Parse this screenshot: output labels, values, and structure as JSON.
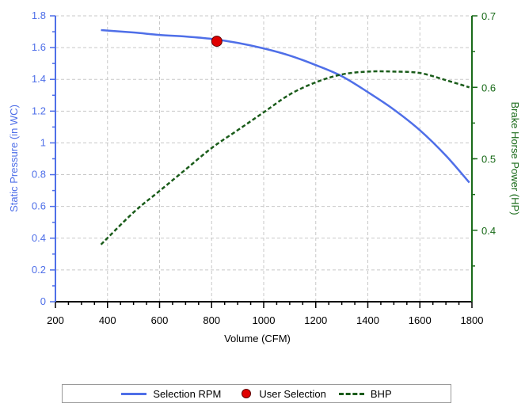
{
  "chart_data": {
    "type": "line",
    "xlabel": "Volume (CFM)",
    "ylabel": "Static Pressure (in WC)",
    "y2label": "Brake Horse Power (HP)",
    "xlim": [
      200,
      1800
    ],
    "ylim": [
      0,
      1.8
    ],
    "y2lim": [
      0.3,
      0.7
    ],
    "x_ticks": [
      200,
      400,
      600,
      800,
      1000,
      1200,
      1400,
      1600,
      1800
    ],
    "y_ticks": [
      "0",
      "0.2",
      "0.4",
      "0.6",
      "0.8",
      "1",
      "1.2",
      "1.4",
      "1.6",
      "1.8"
    ],
    "y2_ticks": [
      "0.4",
      "0.5",
      "0.6",
      "0.7"
    ],
    "grid": true,
    "legend_position": "bottom",
    "colors": {
      "left_axis": "#4f6fe8",
      "right_axis": "#1a6b1a",
      "rpm_line": "#4f6fe8",
      "bhp_line": "#1a5c1a",
      "point": "#e00000"
    },
    "series": [
      {
        "name": "Selection RPM",
        "axis": "left",
        "style": "solid",
        "x": [
          375,
          500,
          600,
          700,
          800,
          900,
          1000,
          1100,
          1200,
          1300,
          1400,
          1500,
          1600,
          1700,
          1790
        ],
        "y": [
          1.71,
          1.695,
          1.68,
          1.67,
          1.655,
          1.63,
          1.595,
          1.55,
          1.49,
          1.42,
          1.32,
          1.21,
          1.08,
          0.92,
          0.75
        ]
      },
      {
        "name": "User Selection",
        "axis": "left",
        "style": "point",
        "x": [
          820
        ],
        "y": [
          1.64
        ]
      },
      {
        "name": "BHP",
        "axis": "right",
        "style": "dashed",
        "x": [
          375,
          500,
          600,
          700,
          800,
          900,
          1000,
          1100,
          1200,
          1300,
          1400,
          1500,
          1600,
          1700,
          1790
        ],
        "y": [
          0.38,
          0.425,
          0.455,
          0.485,
          0.515,
          0.54,
          0.565,
          0.59,
          0.607,
          0.618,
          0.622,
          0.622,
          0.62,
          0.61,
          0.6
        ]
      }
    ]
  },
  "legend": {
    "rpm": "Selection RPM",
    "point": "User Selection",
    "bhp": "BHP"
  }
}
